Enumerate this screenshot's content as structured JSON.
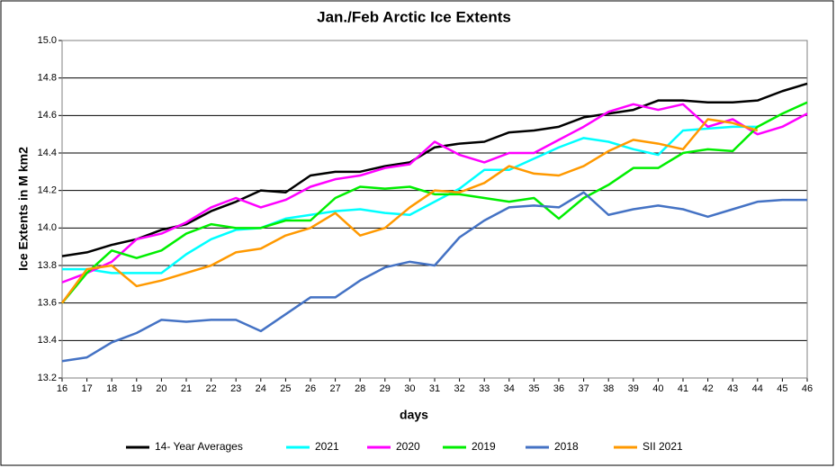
{
  "chart_data": {
    "type": "line",
    "title": "Jan./Feb Arctic Ice Extents",
    "xlabel": "days",
    "ylabel": "Ice Extents in M km2",
    "x": [
      16,
      17,
      18,
      19,
      20,
      21,
      22,
      23,
      24,
      25,
      26,
      27,
      28,
      29,
      30,
      31,
      32,
      33,
      34,
      35,
      36,
      37,
      38,
      39,
      40,
      41,
      42,
      43,
      44,
      45,
      46
    ],
    "xlim": [
      16,
      46
    ],
    "xticks": [
      16,
      17,
      18,
      19,
      20,
      21,
      22,
      23,
      24,
      25,
      26,
      27,
      28,
      29,
      30,
      31,
      32,
      33,
      34,
      35,
      36,
      37,
      38,
      39,
      40,
      41,
      42,
      43,
      44,
      45,
      46
    ],
    "ylim": [
      13.2,
      15.0
    ],
    "yticks": [
      13.2,
      13.4,
      13.6,
      13.8,
      {
        "value": 14.0,
        "label": "14.0"
      },
      14.2,
      14.4,
      14.6,
      14.8,
      {
        "value": 15.0,
        "label": "15.0"
      }
    ],
    "grid": true,
    "legend": "bottom",
    "series": [
      {
        "name": "14- Year Averages",
        "color": "#000000",
        "values": [
          13.85,
          13.87,
          13.91,
          13.94,
          13.99,
          14.02,
          14.09,
          14.14,
          14.2,
          14.19,
          14.28,
          14.3,
          14.3,
          14.33,
          14.35,
          14.43,
          14.45,
          14.46,
          14.51,
          14.52,
          14.54,
          14.59,
          14.61,
          14.63,
          14.68,
          14.68,
          14.67,
          14.67,
          14.68,
          14.73,
          14.77
        ]
      },
      {
        "name": "2021",
        "color": "#00ffff",
        "values": [
          13.78,
          13.78,
          13.76,
          13.76,
          13.76,
          13.86,
          13.94,
          13.99,
          14.0,
          14.05,
          14.07,
          14.09,
          14.1,
          14.08,
          14.07,
          14.14,
          14.21,
          14.31,
          14.31,
          14.37,
          14.43,
          14.48,
          14.46,
          14.42,
          14.39,
          14.52,
          14.53,
          14.54,
          14.54,
          null,
          null
        ]
      },
      {
        "name": "2020",
        "color": "#ff00ff",
        "values": [
          13.71,
          13.76,
          13.82,
          13.94,
          13.97,
          14.03,
          14.11,
          14.16,
          14.11,
          14.15,
          14.22,
          14.26,
          14.28,
          14.32,
          14.34,
          14.46,
          14.39,
          14.35,
          14.4,
          14.4,
          14.47,
          14.54,
          14.62,
          14.66,
          14.63,
          14.66,
          14.54,
          14.58,
          14.5,
          14.54,
          14.61
        ]
      },
      {
        "name": "2019",
        "color": "#00ee00",
        "values": [
          13.6,
          13.76,
          13.88,
          13.84,
          13.88,
          13.97,
          14.02,
          14.0,
          14.0,
          14.04,
          14.04,
          14.16,
          14.22,
          14.21,
          14.22,
          14.18,
          14.18,
          14.16,
          14.14,
          14.16,
          14.05,
          14.16,
          14.23,
          14.32,
          14.32,
          14.4,
          14.42,
          14.41,
          14.54,
          14.61,
          14.67
        ]
      },
      {
        "name": "2018",
        "color": "#4472c4",
        "values": [
          13.29,
          13.31,
          13.39,
          13.44,
          13.51,
          13.5,
          13.51,
          13.51,
          13.45,
          13.54,
          13.63,
          13.63,
          13.72,
          13.79,
          13.82,
          13.8,
          13.95,
          14.04,
          14.11,
          14.12,
          14.11,
          14.19,
          14.07,
          14.1,
          14.12,
          14.1,
          14.06,
          14.1,
          14.14,
          14.15,
          14.15
        ]
      },
      {
        "name": "SII 2021",
        "color": "#ff9900",
        "values": [
          13.6,
          13.78,
          13.8,
          13.69,
          13.72,
          13.76,
          13.8,
          13.87,
          13.89,
          13.96,
          14.0,
          14.08,
          13.96,
          14.0,
          14.11,
          14.2,
          14.19,
          14.24,
          14.33,
          14.29,
          14.28,
          14.33,
          14.41,
          14.47,
          14.45,
          14.42,
          14.58,
          14.56,
          14.52,
          null,
          null
        ]
      }
    ]
  }
}
